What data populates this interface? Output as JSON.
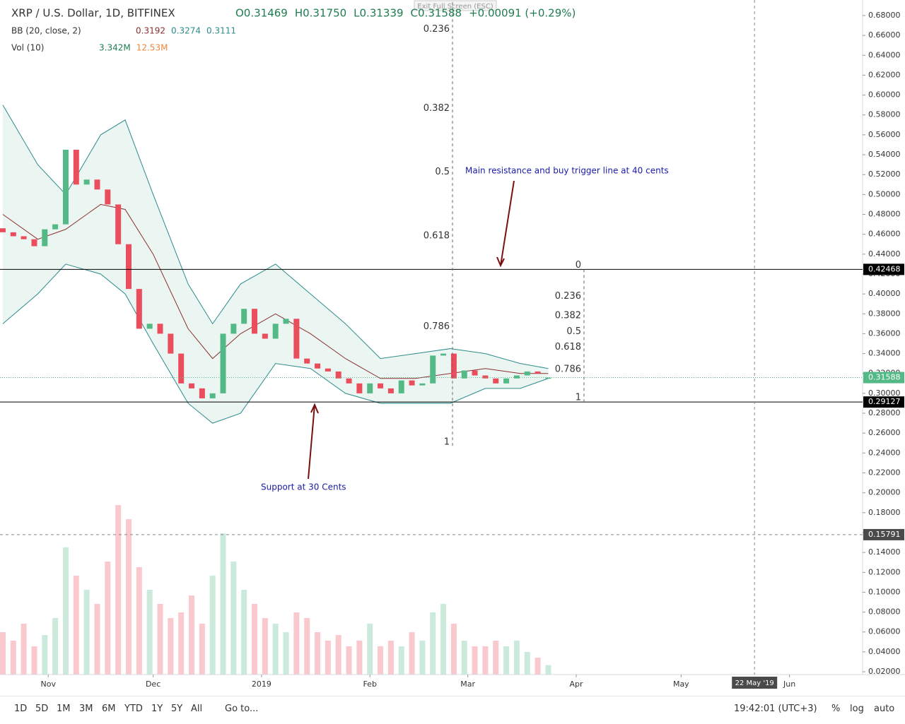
{
  "header": {
    "exit": "Exit Full Screen (ESC)"
  },
  "toolbar": {
    "ranges": [
      "1D",
      "5D",
      "1M",
      "3M",
      "6M",
      "YTD",
      "1Y",
      "5Y",
      "All"
    ],
    "goto": "Go to...",
    "time": "19:42:01 (UTC+3)",
    "options": [
      "%",
      "log",
      "auto"
    ]
  },
  "chart_data": {
    "type": "candlestick",
    "title": "XRP / U.S. Dollar, 1D, BITFINEX",
    "ohlc_text": [
      "O0.31469",
      "H0.31750",
      "L0.31339",
      "C0.31588",
      "+0.00091 (+0.29%)"
    ],
    "x": [
      -13,
      -10,
      -7,
      -4,
      -1,
      2,
      5,
      8,
      11,
      14,
      17,
      20,
      23,
      26,
      29,
      32,
      35,
      38,
      41,
      44,
      47,
      50,
      53,
      56,
      59,
      62,
      65,
      68,
      71,
      74,
      77,
      80,
      83,
      86,
      89,
      92,
      95,
      98,
      101,
      104,
      107,
      110,
      113,
      116,
      119,
      122,
      125,
      128,
      131,
      134,
      137,
      140,
      143
    ],
    "open": [
      0.466,
      0.462,
      0.458,
      0.455,
      0.448,
      0.465,
      0.47,
      0.545,
      0.51,
      0.515,
      0.505,
      0.49,
      0.45,
      0.405,
      0.365,
      0.37,
      0.36,
      0.34,
      0.31,
      0.305,
      0.295,
      0.3,
      0.36,
      0.37,
      0.385,
      0.36,
      0.355,
      0.37,
      0.375,
      0.335,
      0.33,
      0.325,
      0.322,
      0.315,
      0.31,
      0.3,
      0.31,
      0.305,
      0.3,
      0.313,
      0.308,
      0.31,
      0.338,
      0.34,
      0.315,
      0.323,
      0.318,
      0.315,
      0.31,
      0.315,
      0.318,
      0.322,
      0.31469
    ],
    "close": [
      0.462,
      0.458,
      0.455,
      0.448,
      0.465,
      0.47,
      0.545,
      0.51,
      0.515,
      0.505,
      0.49,
      0.45,
      0.405,
      0.365,
      0.37,
      0.36,
      0.34,
      0.31,
      0.305,
      0.295,
      0.3,
      0.36,
      0.37,
      0.385,
      0.36,
      0.355,
      0.37,
      0.375,
      0.335,
      0.33,
      0.325,
      0.322,
      0.315,
      0.31,
      0.3,
      0.31,
      0.305,
      0.3,
      0.313,
      0.308,
      0.31,
      0.338,
      0.34,
      0.315,
      0.323,
      0.318,
      0.315,
      0.31,
      0.315,
      0.318,
      0.322,
      0.32,
      0.31588
    ],
    "volume": [
      15,
      12,
      18,
      10,
      14,
      20,
      45,
      35,
      30,
      25,
      40,
      60,
      55,
      38,
      30,
      25,
      20,
      22,
      28,
      18,
      35,
      50,
      40,
      30,
      25,
      20,
      18,
      15,
      22,
      20,
      15,
      12,
      14,
      10,
      12,
      18,
      10,
      12,
      10,
      15,
      12,
      22,
      25,
      18,
      12,
      10,
      10,
      12,
      10,
      12,
      8,
      6,
      3.342
    ],
    "colors": {
      "up": "#53b987",
      "down": "#eb4d5c",
      "band": "#2e8b8b",
      "basis": "#8b2f2f"
    },
    "bollinger": {
      "label": "BB (20, close, 2)",
      "values_text": [
        "0.3192",
        "0.3274",
        "0.3111"
      ],
      "x": [
        -13,
        -3,
        5,
        15,
        22,
        30,
        40,
        47,
        55,
        65,
        75,
        85,
        95,
        105,
        115,
        125,
        135,
        143
      ],
      "upper": [
        0.59,
        0.53,
        0.5,
        0.56,
        0.575,
        0.5,
        0.41,
        0.37,
        0.41,
        0.43,
        0.4,
        0.37,
        0.335,
        0.34,
        0.345,
        0.34,
        0.33,
        0.325
      ],
      "middle": [
        0.48,
        0.455,
        0.465,
        0.49,
        0.485,
        0.44,
        0.365,
        0.335,
        0.36,
        0.38,
        0.36,
        0.335,
        0.315,
        0.315,
        0.32,
        0.325,
        0.32,
        0.32
      ],
      "lower": [
        0.37,
        0.4,
        0.43,
        0.42,
        0.4,
        0.35,
        0.29,
        0.27,
        0.28,
        0.33,
        0.325,
        0.3,
        0.29,
        0.29,
        0.29,
        0.305,
        0.305,
        0.315
      ]
    },
    "volume_label": "Vol (10)",
    "volume_values_text": [
      "3.342M",
      "12.53M"
    ],
    "lines": [
      0.42468,
      0.29127
    ],
    "last_price": 0.31588,
    "crosshair": {
      "y": 0.15791,
      "x": {
        "value": 202,
        "label": "22 May '19"
      }
    },
    "fib": [
      {
        "start": 0.79,
        "end": 0.2466,
        "levels": [
          0.236,
          0.382,
          0.5,
          0.618,
          0.786,
          1
        ]
      },
      {
        "start": 0.42468,
        "end": 0.29127,
        "levels": [
          0,
          0.236,
          0.382,
          0.5,
          0.618,
          0.786,
          1
        ]
      }
    ],
    "annotations": [
      "Main resistance and buy trigger line at 40 cents",
      "Support at 30 Cents"
    ],
    "xlim": [
      -13.8,
      232.9
    ],
    "xticks": [
      {
        "value": 0,
        "label": "Nov"
      },
      {
        "value": 30,
        "label": "Dec"
      },
      {
        "value": 61,
        "label": "2019"
      },
      {
        "value": 92,
        "label": "Feb"
      },
      {
        "value": 120,
        "label": "Mar"
      },
      {
        "value": 151,
        "label": "Apr"
      },
      {
        "value": 181,
        "label": "May"
      },
      {
        "value": 212,
        "label": "Jun"
      }
    ],
    "ylim": [
      0.0172,
      0.6956
    ],
    "yticks": [
      {
        "value": 0.02,
        "label": "0.02000"
      },
      {
        "value": 0.04,
        "label": "0.04000"
      },
      {
        "value": 0.06,
        "label": "0.06000"
      },
      {
        "value": 0.08,
        "label": "0.08000"
      },
      {
        "value": 0.1,
        "label": "0.10000"
      },
      {
        "value": 0.12,
        "label": "0.12000"
      },
      {
        "value": 0.14,
        "label": "0.14000"
      },
      {
        "value": 0.16,
        "label": "0.16000"
      },
      {
        "value": 0.18,
        "label": "0.18000"
      },
      {
        "value": 0.2,
        "label": "0.20000"
      },
      {
        "value": 0.22,
        "label": "0.22000"
      },
      {
        "value": 0.24,
        "label": "0.24000"
      },
      {
        "value": 0.26,
        "label": "0.26000"
      },
      {
        "value": 0.28,
        "label": "0.28000"
      },
      {
        "value": 0.3,
        "label": "0.30000"
      },
      {
        "value": 0.32,
        "label": "0.32000"
      },
      {
        "value": 0.34,
        "label": "0.34000"
      },
      {
        "value": 0.36,
        "label": "0.36000"
      },
      {
        "value": 0.38,
        "label": "0.38000"
      },
      {
        "value": 0.4,
        "label": "0.40000"
      },
      {
        "value": 0.42,
        "label": "0.42000"
      },
      {
        "value": 0.44,
        "label": "0.44000"
      },
      {
        "value": 0.46,
        "label": "0.46000"
      },
      {
        "value": 0.48,
        "label": "0.48000"
      },
      {
        "value": 0.5,
        "label": "0.50000"
      },
      {
        "value": 0.52,
        "label": "0.52000"
      },
      {
        "value": 0.54,
        "label": "0.54000"
      },
      {
        "value": 0.56,
        "label": "0.56000"
      },
      {
        "value": 0.58,
        "label": "0.58000"
      },
      {
        "value": 0.6,
        "label": "0.60000"
      },
      {
        "value": 0.62,
        "label": "0.62000"
      },
      {
        "value": 0.64,
        "label": "0.64000"
      },
      {
        "value": 0.66,
        "label": "0.66000"
      },
      {
        "value": 0.68,
        "label": "0.68000"
      }
    ]
  }
}
